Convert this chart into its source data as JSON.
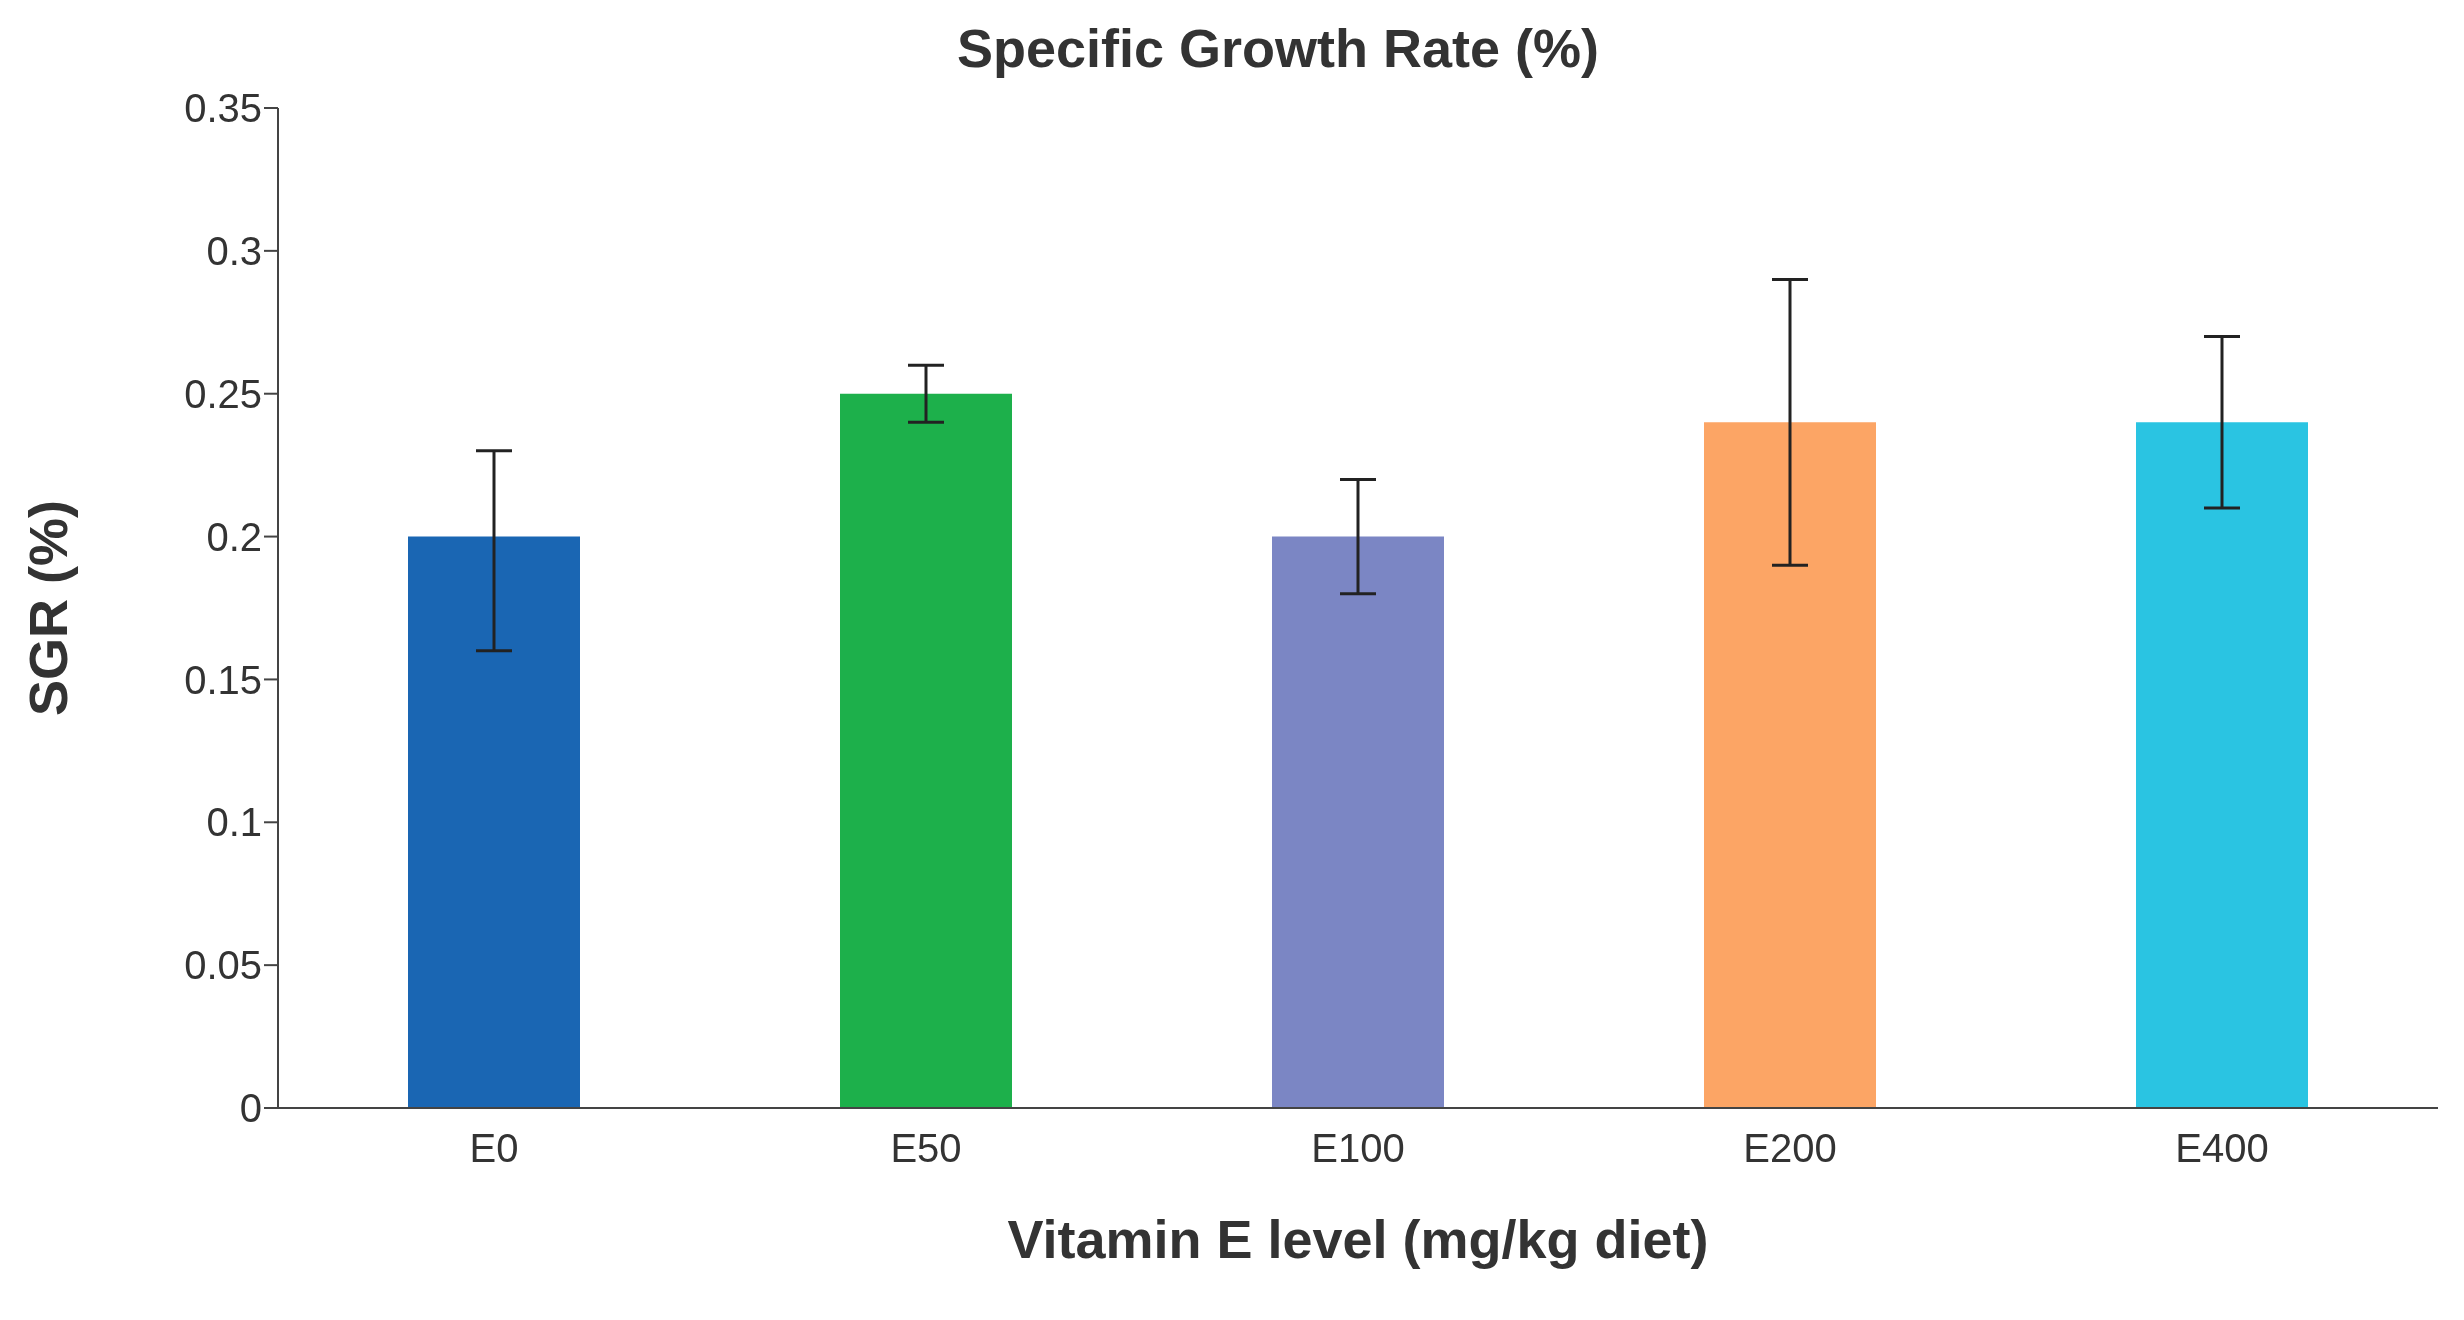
{
  "chart_data": {
    "type": "bar",
    "title": "Specific Growth Rate (%)",
    "xlabel": "Vitamin E level (mg/kg diet)",
    "ylabel": "SGR (%)",
    "categories": [
      "E0",
      "E50",
      "E100",
      "E200",
      "E400"
    ],
    "values": [
      0.2,
      0.25,
      0.2,
      0.24,
      0.24
    ],
    "errors": [
      [
        0.16,
        0.23
      ],
      [
        0.24,
        0.26
      ],
      [
        0.18,
        0.22
      ],
      [
        0.19,
        0.29
      ],
      [
        0.21,
        0.27
      ]
    ],
    "colors": [
      "#1a66b3",
      "#1db04b",
      "#7b86c4",
      "#fca565",
      "#2ac4e2"
    ],
    "ylim": [
      0,
      0.35
    ],
    "yticks": [
      0,
      0.05,
      0.1,
      0.15,
      0.2,
      0.25,
      0.3,
      0.35
    ],
    "grid": false,
    "legend": false
  }
}
